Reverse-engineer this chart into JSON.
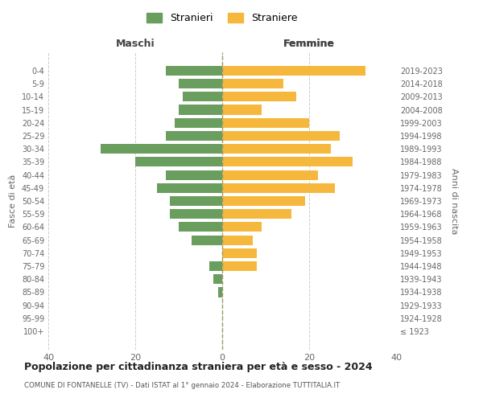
{
  "age_groups": [
    "100+",
    "95-99",
    "90-94",
    "85-89",
    "80-84",
    "75-79",
    "70-74",
    "65-69",
    "60-64",
    "55-59",
    "50-54",
    "45-49",
    "40-44",
    "35-39",
    "30-34",
    "25-29",
    "20-24",
    "15-19",
    "10-14",
    "5-9",
    "0-4"
  ],
  "birth_years": [
    "≤ 1923",
    "1924-1928",
    "1929-1933",
    "1934-1938",
    "1939-1943",
    "1944-1948",
    "1949-1953",
    "1954-1958",
    "1959-1963",
    "1964-1968",
    "1969-1973",
    "1974-1978",
    "1979-1983",
    "1984-1988",
    "1989-1993",
    "1994-1998",
    "1999-2003",
    "2004-2008",
    "2009-2013",
    "2014-2018",
    "2019-2023"
  ],
  "maschi": [
    0,
    0,
    0,
    1,
    2,
    3,
    0,
    7,
    10,
    12,
    12,
    15,
    13,
    20,
    28,
    13,
    11,
    10,
    9,
    10,
    13
  ],
  "femmine": [
    0,
    0,
    0,
    0,
    0,
    8,
    8,
    7,
    9,
    16,
    19,
    26,
    22,
    30,
    25,
    27,
    20,
    9,
    17,
    14,
    33
  ],
  "male_color": "#6a9e5e",
  "female_color": "#f5b83d",
  "background_color": "#ffffff",
  "grid_color": "#cccccc",
  "title": "Popolazione per cittadinanza straniera per età e sesso - 2024",
  "subtitle": "COMUNE DI FONTANELLE (TV) - Dati ISTAT al 1° gennaio 2024 - Elaborazione TUTTITALIA.IT",
  "left_label": "Maschi",
  "right_label": "Femmine",
  "ylabel": "Fasce di età",
  "ylabel_right": "Anni di nascita",
  "legend_male": "Stranieri",
  "legend_female": "Straniere",
  "xlim": 40
}
